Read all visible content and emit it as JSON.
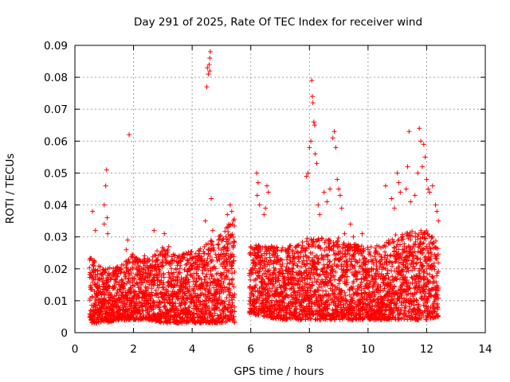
{
  "chart_data": {
    "type": "scatter",
    "title": "Day 291 of 2025, Rate Of TEC Index for receiver wind",
    "xlabel": "GPS time / hours",
    "ylabel": "ROTI / TECUs",
    "xlim": [
      0,
      14
    ],
    "ylim": [
      0,
      0.09
    ],
    "x_ticks": [
      0,
      2,
      4,
      6,
      8,
      10,
      12,
      14
    ],
    "y_ticks": [
      0,
      0.01,
      0.02,
      0.03,
      0.04,
      0.05,
      0.06,
      0.07,
      0.08,
      0.09
    ],
    "x_tick_labels": [
      "0",
      "2",
      "4",
      "6",
      "8",
      "10",
      "12",
      "14"
    ],
    "y_tick_labels": [
      "0",
      "0.01",
      "0.02",
      "0.03",
      "0.04",
      "0.05",
      "0.06",
      "0.07",
      "0.08",
      "0.09"
    ],
    "grid": true,
    "legend": "none",
    "marker": "+",
    "color": "#ff0000",
    "segments": [
      {
        "start": 0.5,
        "end": 5.45
      },
      {
        "start": 5.95,
        "end": 12.4
      }
    ],
    "envelope": [
      {
        "x": 0.5,
        "low": 0.003,
        "high": 0.024
      },
      {
        "x": 1.0,
        "low": 0.003,
        "high": 0.02
      },
      {
        "x": 1.5,
        "low": 0.004,
        "high": 0.021
      },
      {
        "x": 2.0,
        "low": 0.004,
        "high": 0.025
      },
      {
        "x": 2.5,
        "low": 0.004,
        "high": 0.024
      },
      {
        "x": 3.0,
        "low": 0.003,
        "high": 0.027
      },
      {
        "x": 3.5,
        "low": 0.003,
        "high": 0.024
      },
      {
        "x": 4.0,
        "low": 0.003,
        "high": 0.026
      },
      {
        "x": 4.5,
        "low": 0.003,
        "high": 0.028
      },
      {
        "x": 5.0,
        "low": 0.003,
        "high": 0.031
      },
      {
        "x": 5.45,
        "low": 0.003,
        "high": 0.036
      },
      {
        "x": 5.95,
        "low": 0.006,
        "high": 0.028
      },
      {
        "x": 6.5,
        "low": 0.005,
        "high": 0.027
      },
      {
        "x": 7.0,
        "low": 0.004,
        "high": 0.028
      },
      {
        "x": 7.5,
        "low": 0.004,
        "high": 0.027
      },
      {
        "x": 8.0,
        "low": 0.004,
        "high": 0.03
      },
      {
        "x": 8.5,
        "low": 0.004,
        "high": 0.03
      },
      {
        "x": 9.0,
        "low": 0.004,
        "high": 0.03
      },
      {
        "x": 9.5,
        "low": 0.004,
        "high": 0.028
      },
      {
        "x": 10.0,
        "low": 0.004,
        "high": 0.027
      },
      {
        "x": 10.5,
        "low": 0.004,
        "high": 0.028
      },
      {
        "x": 11.0,
        "low": 0.004,
        "high": 0.031
      },
      {
        "x": 11.5,
        "low": 0.004,
        "high": 0.032
      },
      {
        "x": 12.0,
        "low": 0.004,
        "high": 0.032
      },
      {
        "x": 12.4,
        "low": 0.005,
        "high": 0.028
      }
    ],
    "outliers": [
      [
        0.6,
        0.038
      ],
      [
        0.7,
        0.032
      ],
      [
        1.0,
        0.04
      ],
      [
        1.05,
        0.046
      ],
      [
        1.08,
        0.051
      ],
      [
        1.1,
        0.036
      ],
      [
        1.12,
        0.031
      ],
      [
        1.0,
        0.034
      ],
      [
        1.85,
        0.062
      ],
      [
        1.8,
        0.029
      ],
      [
        1.75,
        0.026
      ],
      [
        2.7,
        0.032
      ],
      [
        3.05,
        0.031
      ],
      [
        3.2,
        0.027
      ],
      [
        4.5,
        0.077
      ],
      [
        4.55,
        0.081
      ],
      [
        4.58,
        0.084
      ],
      [
        4.6,
        0.086
      ],
      [
        4.62,
        0.088
      ],
      [
        4.52,
        0.083
      ],
      [
        4.6,
        0.082
      ],
      [
        4.45,
        0.035
      ],
      [
        4.65,
        0.042
      ],
      [
        4.7,
        0.032
      ],
      [
        5.2,
        0.037
      ],
      [
        5.3,
        0.04
      ],
      [
        5.35,
        0.038
      ],
      [
        5.25,
        0.034
      ],
      [
        6.2,
        0.05
      ],
      [
        6.25,
        0.047
      ],
      [
        6.22,
        0.043
      ],
      [
        6.3,
        0.04
      ],
      [
        6.5,
        0.039
      ],
      [
        6.55,
        0.046
      ],
      [
        6.6,
        0.044
      ],
      [
        6.45,
        0.037
      ],
      [
        7.9,
        0.049
      ],
      [
        7.95,
        0.05
      ],
      [
        8.0,
        0.058
      ],
      [
        8.05,
        0.06
      ],
      [
        8.08,
        0.079
      ],
      [
        8.1,
        0.074
      ],
      [
        8.12,
        0.072
      ],
      [
        8.15,
        0.066
      ],
      [
        8.18,
        0.065
      ],
      [
        8.2,
        0.056
      ],
      [
        8.25,
        0.053
      ],
      [
        8.3,
        0.04
      ],
      [
        8.35,
        0.037
      ],
      [
        8.5,
        0.044
      ],
      [
        8.6,
        0.041
      ],
      [
        8.7,
        0.045
      ],
      [
        8.8,
        0.061
      ],
      [
        8.85,
        0.063
      ],
      [
        8.9,
        0.058
      ],
      [
        8.95,
        0.048
      ],
      [
        9.0,
        0.045
      ],
      [
        9.05,
        0.043
      ],
      [
        9.1,
        0.039
      ],
      [
        9.2,
        0.031
      ],
      [
        9.4,
        0.034
      ],
      [
        9.5,
        0.03
      ],
      [
        9.8,
        0.031
      ],
      [
        10.6,
        0.046
      ],
      [
        10.8,
        0.042
      ],
      [
        10.9,
        0.039
      ],
      [
        11.0,
        0.05
      ],
      [
        11.05,
        0.047
      ],
      [
        11.1,
        0.044
      ],
      [
        11.3,
        0.045
      ],
      [
        11.35,
        0.052
      ],
      [
        11.4,
        0.063
      ],
      [
        11.45,
        0.041
      ],
      [
        11.6,
        0.043
      ],
      [
        11.7,
        0.05
      ],
      [
        11.75,
        0.064
      ],
      [
        11.8,
        0.06
      ],
      [
        11.85,
        0.052
      ],
      [
        11.9,
        0.059
      ],
      [
        11.95,
        0.055
      ],
      [
        12.0,
        0.048
      ],
      [
        12.05,
        0.045
      ],
      [
        12.1,
        0.044
      ],
      [
        12.2,
        0.046
      ],
      [
        12.3,
        0.04
      ],
      [
        12.35,
        0.038
      ],
      [
        12.4,
        0.035
      ]
    ]
  }
}
